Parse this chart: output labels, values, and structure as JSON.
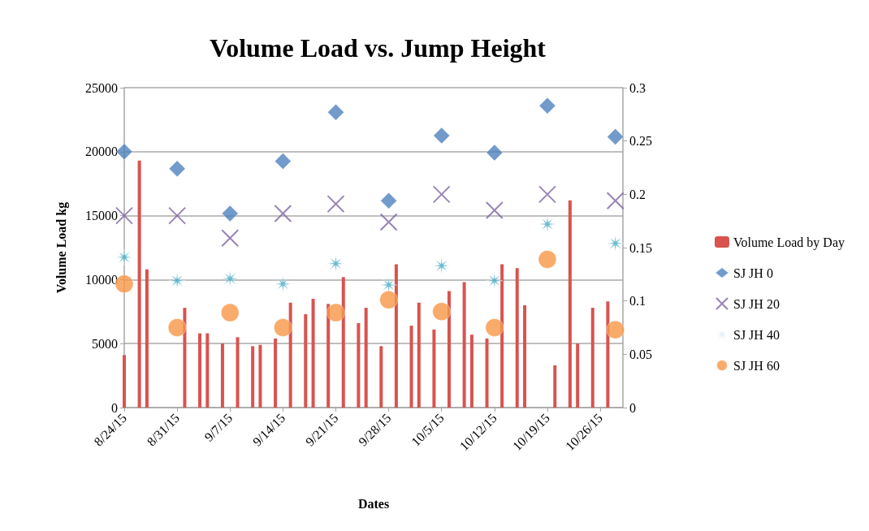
{
  "chart_data": {
    "type": "bar",
    "title": "Volume Load vs. Jump Height",
    "xlabel": "Dates",
    "ylabel": "Volume Load kg",
    "xlim": [
      "--08-24",
      "--10-29"
    ],
    "xticks": [
      {
        "value": "--08-24",
        "label": "8/24/15"
      },
      {
        "value": "--08-31",
        "label": "8/31/15"
      },
      {
        "value": "--09-07",
        "label": "9/7/15"
      },
      {
        "value": "--09-14",
        "label": "9/14/15"
      },
      {
        "value": "--09-21",
        "label": "9/21/15"
      },
      {
        "value": "--09-28",
        "label": "9/28/15"
      },
      {
        "value": "--10-05",
        "label": "10/5/15"
      },
      {
        "value": "--10-12",
        "label": "10/12/15"
      },
      {
        "value": "--10-19",
        "label": "10/19/15"
      },
      {
        "value": "--10-26",
        "label": "10/26/15"
      }
    ],
    "ylim": [
      0,
      25000
    ],
    "yticks": [
      0,
      5000,
      10000,
      15000,
      20000,
      25000
    ],
    "y2lim": [
      0,
      0.3
    ],
    "y2ticks": [
      0,
      0.05,
      0.1,
      0.15,
      0.2,
      0.25,
      0.3
    ],
    "grid": "y",
    "legend": "right",
    "series": [
      {
        "name": "Volume Load by Day",
        "color": "#d9534f",
        "x": [
          "--08-24",
          "--08-26",
          "--08-27",
          "--09-01",
          "--09-03",
          "--09-04",
          "--09-06",
          "--09-08",
          "--09-10",
          "--09-11",
          "--09-13",
          "--09-15",
          "--09-17",
          "--09-18",
          "--09-20",
          "--09-22",
          "--09-24",
          "--09-25",
          "--09-27",
          "--09-29",
          "--10-01",
          "--10-02",
          "--10-04",
          "--10-06",
          "--10-08",
          "--10-09",
          "--10-11",
          "--10-13",
          "--10-15",
          "--10-16",
          "--10-20",
          "--10-22",
          "--10-23",
          "--10-25",
          "--10-27"
        ],
        "values": [
          4100,
          19300,
          10800,
          7800,
          5800,
          5800,
          5000,
          5500,
          4800,
          4900,
          5400,
          8200,
          7300,
          8500,
          8100,
          10200,
          6600,
          7800,
          4800,
          11200,
          6400,
          8200,
          6100,
          9100,
          9800,
          5700,
          5400,
          11200,
          10900,
          8000,
          3300,
          16200,
          5000,
          7800,
          8300
        ]
      },
      {
        "name": "SJ JH 0",
        "type": "scatter",
        "axis": "y2",
        "marker": "diamond",
        "color": "#4f81bd",
        "x": [
          "--08-24",
          "--08-31",
          "--09-07",
          "--09-14",
          "--09-21",
          "--09-28",
          "--10-05",
          "--10-12",
          "--10-19",
          "--10-28"
        ],
        "values": [
          0.24,
          0.224,
          0.182,
          0.231,
          0.277,
          0.194,
          0.255,
          0.239,
          0.283,
          0.254
        ]
      },
      {
        "name": "SJ JH 20",
        "type": "scatter",
        "axis": "y2",
        "marker": "cross",
        "color": "#8064a2",
        "x": [
          "--08-24",
          "--08-31",
          "--09-07",
          "--09-14",
          "--09-21",
          "--09-28",
          "--10-05",
          "--10-12",
          "--10-19",
          "--10-28"
        ],
        "values": [
          0.18,
          0.18,
          0.159,
          0.182,
          0.191,
          0.174,
          0.2,
          0.185,
          0.2,
          0.194
        ]
      },
      {
        "name": "SJ JH 40",
        "type": "scatter",
        "axis": "y2",
        "marker": "star",
        "color": "#4bacc6",
        "x": [
          "--08-24",
          "--08-31",
          "--09-07",
          "--09-14",
          "--09-21",
          "--09-28",
          "--10-05",
          "--10-12",
          "--10-19",
          "--10-28"
        ],
        "values": [
          0.141,
          0.119,
          0.121,
          0.116,
          0.135,
          0.115,
          0.133,
          0.119,
          0.172,
          0.154
        ]
      },
      {
        "name": "SJ JH 60",
        "type": "scatter",
        "axis": "y2",
        "marker": "circle",
        "color": "#f79646",
        "x": [
          "--08-24",
          "--08-31",
          "--09-07",
          "--09-14",
          "--09-21",
          "--09-28",
          "--10-05",
          "--10-12",
          "--10-19",
          "--10-28"
        ],
        "values": [
          0.116,
          0.075,
          0.089,
          0.075,
          0.089,
          0.101,
          0.09,
          0.075,
          0.139,
          0.073
        ]
      }
    ]
  }
}
